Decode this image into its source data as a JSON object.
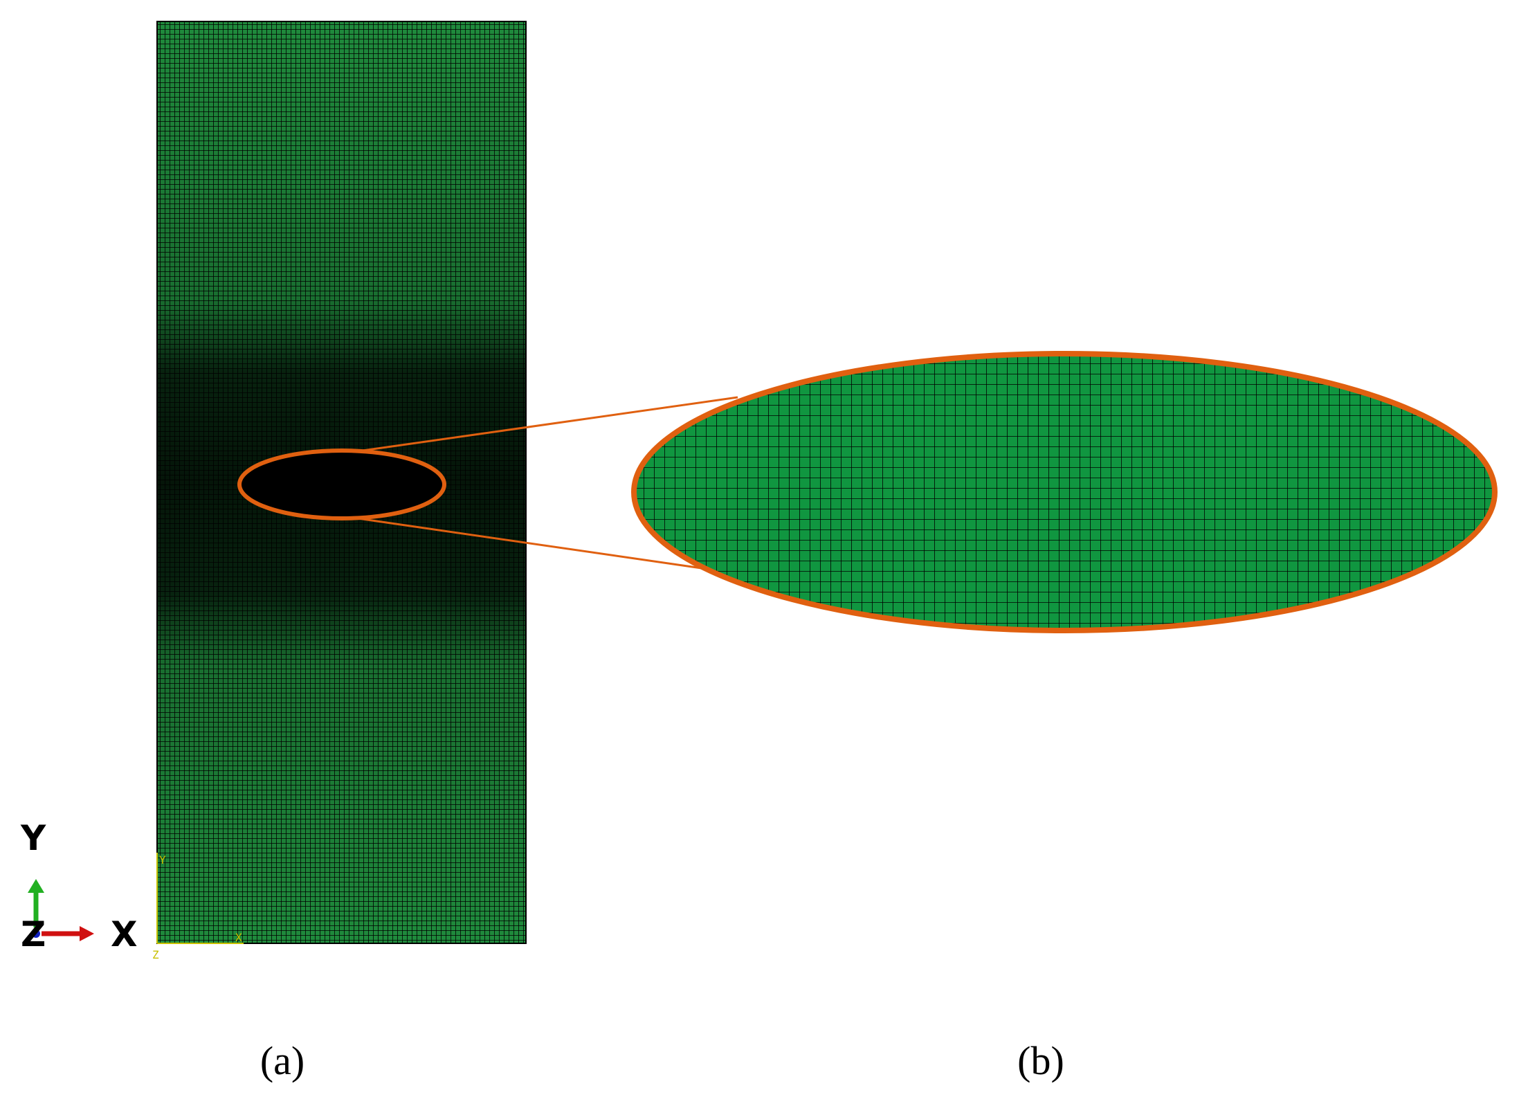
{
  "panels": [
    {
      "label": "(a)"
    },
    {
      "label": "(b)"
    }
  ],
  "axes": {
    "y": "Y",
    "z": "Z",
    "x": "X"
  },
  "local_axes": {
    "y": "Y",
    "x": "X",
    "z": "Z"
  }
}
